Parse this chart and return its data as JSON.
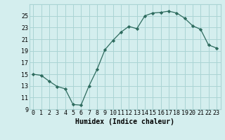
{
  "x": [
    0,
    1,
    2,
    3,
    4,
    5,
    6,
    7,
    8,
    9,
    10,
    11,
    12,
    13,
    14,
    15,
    16,
    17,
    18,
    19,
    20,
    21,
    22,
    23
  ],
  "y": [
    15.0,
    14.8,
    13.8,
    12.9,
    12.5,
    9.8,
    9.7,
    13.0,
    15.8,
    19.2,
    20.8,
    22.2,
    23.2,
    22.8,
    25.0,
    25.5,
    25.6,
    25.8,
    25.5,
    24.6,
    23.3,
    22.7,
    20.0,
    19.5
  ],
  "xlabel": "Humidex (Indice chaleur)",
  "line_color": "#2e6b5e",
  "marker": "D",
  "marker_size": 2.2,
  "bg_color": "#d4eeee",
  "grid_color": "#aad4d4",
  "ylim": [
    9,
    27
  ],
  "xlim": [
    -0.5,
    23.5
  ],
  "yticks": [
    9,
    11,
    13,
    15,
    17,
    19,
    21,
    23,
    25
  ],
  "xtick_labels": [
    "0",
    "1",
    "2",
    "3",
    "4",
    "5",
    "6",
    "7",
    "8",
    "9",
    "10",
    "11",
    "12",
    "13",
    "14",
    "15",
    "16",
    "17",
    "18",
    "19",
    "20",
    "21",
    "22",
    "23"
  ],
  "tick_fontsize": 6,
  "xlabel_fontsize": 7
}
